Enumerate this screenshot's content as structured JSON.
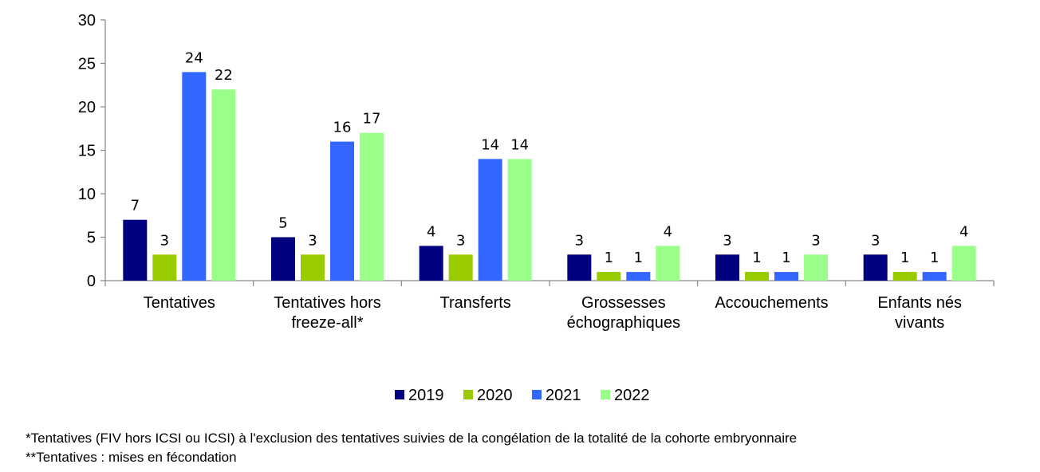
{
  "chart_data": {
    "type": "bar",
    "categories": [
      [
        "Tentatives"
      ],
      [
        "Tentatives hors",
        "freeze-all*"
      ],
      [
        "Transferts"
      ],
      [
        "Grossesses",
        "échographiques"
      ],
      [
        "Accouchements"
      ],
      [
        "Enfants nés",
        "vivants"
      ]
    ],
    "series": [
      {
        "name": "2019",
        "color": "#000080",
        "values": [
          7,
          5,
          4,
          3,
          3,
          3
        ]
      },
      {
        "name": "2020",
        "color": "#99CC00",
        "values": [
          3,
          3,
          3,
          1,
          1,
          1
        ]
      },
      {
        "name": "2021",
        "color": "#3366FF",
        "values": [
          24,
          16,
          14,
          1,
          1,
          1
        ]
      },
      {
        "name": "2022",
        "color": "#99FF88",
        "values": [
          22,
          17,
          14,
          4,
          3,
          4
        ]
      }
    ],
    "yticks": [
      0,
      5,
      10,
      15,
      20,
      25,
      30
    ],
    "ylim": [
      0,
      30
    ],
    "grid": false,
    "legend": "bottom-center"
  },
  "footnotes": [
    "*Tentatives (FIV hors ICSI ou ICSI) à l'exclusion des tentatives suivies de la congélation de la totalité de la cohorte embryonnaire",
    "**Tentatives : mises en fécondation"
  ]
}
